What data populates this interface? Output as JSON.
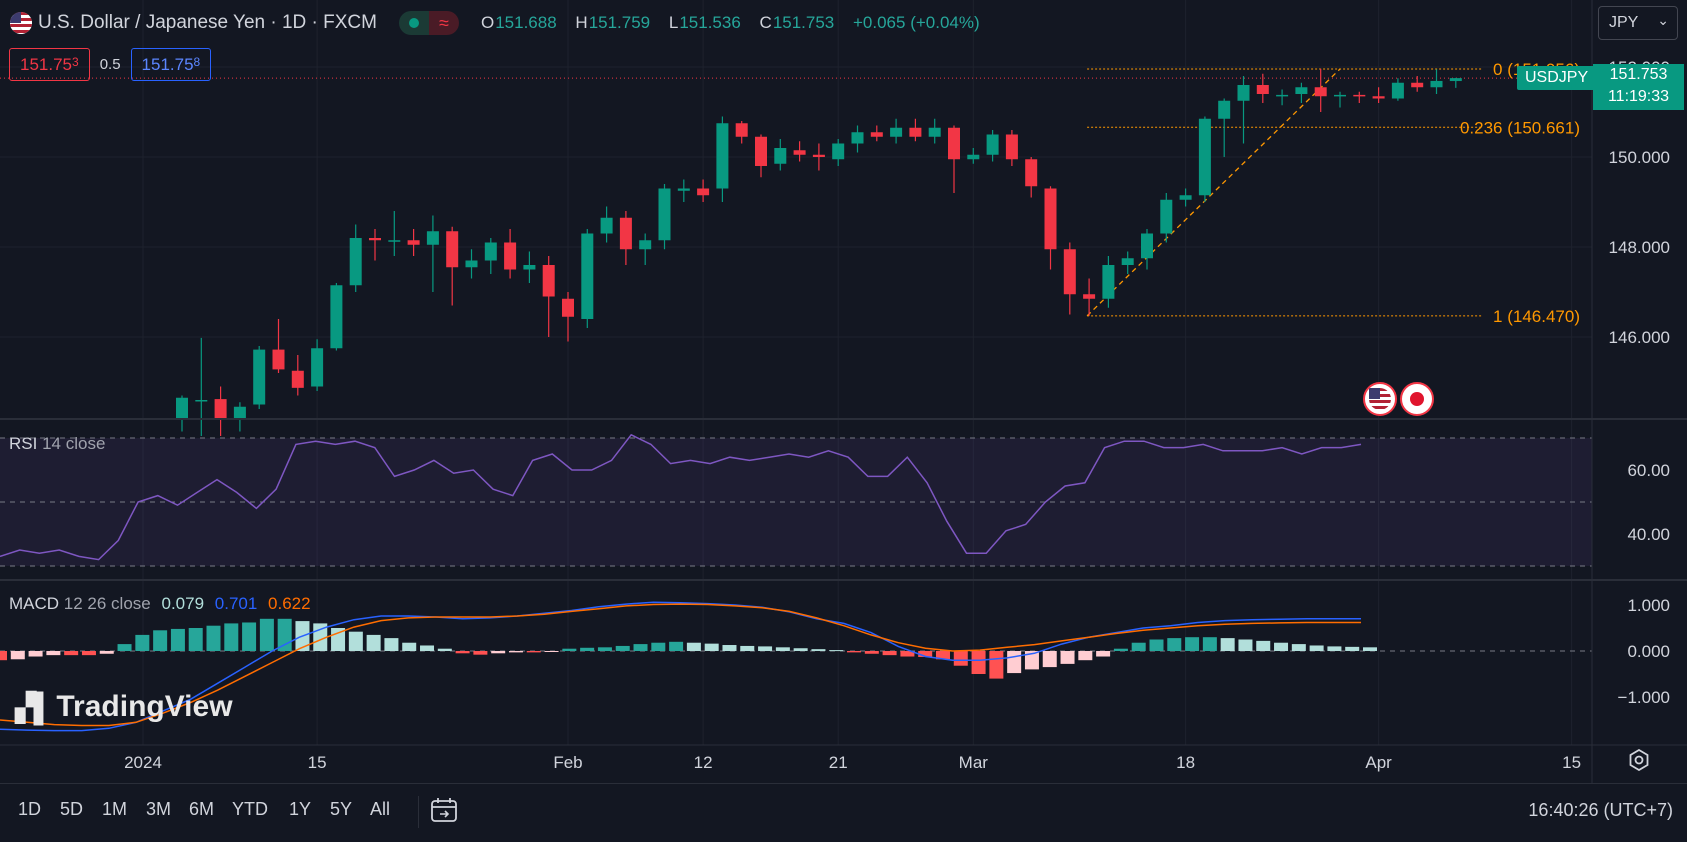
{
  "header": {
    "title": "U.S. Dollar / Japanese Yen · 1D · FXCM",
    "ohlc": {
      "o_label": "O",
      "o": "151.688",
      "h_label": "H",
      "h": "151.759",
      "l_label": "L",
      "l": "151.536",
      "c_label": "C",
      "c": "151.753",
      "change": "+0.065 (+0.04%)"
    },
    "currency": "JPY"
  },
  "trade": {
    "sell_main": "151.75",
    "sell_pip": "3",
    "spread": "0.5",
    "buy_main": "151.75",
    "buy_pip": "8"
  },
  "last_price": {
    "symbol": "USDJPY",
    "price": "151.753",
    "countdown": "11:19:33"
  },
  "rsi_label": {
    "name": "RSI",
    "params": "14 close"
  },
  "macd_label": {
    "name": "MACD",
    "params": "12 26 close",
    "hist": "0.079",
    "macd": "0.701",
    "signal": "0.622"
  },
  "logo": "TradingView",
  "timeframes": [
    "1D",
    "5D",
    "1M",
    "3M",
    "6M",
    "YTD",
    "1Y",
    "5Y",
    "All"
  ],
  "timezone": "16:40:26 (UTC+7)",
  "icons": [
    "us-flag-icon",
    "status-dot-icon",
    "wave-icon",
    "calendar-goto-icon",
    "settings-icon",
    "chevron-down-icon"
  ],
  "colors": {
    "up": "#089981",
    "down": "#f23645",
    "fib": "#ff9800",
    "rsi": "#7e57c2",
    "macd": "#2962ff",
    "signal": "#ff6d00",
    "hist_up_strong": "#26a69a",
    "hist_up_weak": "#b2dfdb",
    "hist_down_strong": "#ff5252",
    "hist_down_weak": "#ffcdd2"
  },
  "chart_data": {
    "type": "candlestick",
    "price_axis": {
      "ticks": [
        146.0,
        148.0,
        150.0,
        152.0
      ],
      "tick_labels": [
        "146.000",
        "148.000",
        "150.000",
        "152.000"
      ]
    },
    "x_labels": [
      "2024",
      "15",
      "Feb",
      "12",
      "21",
      "Mar",
      "18",
      "Apr",
      "15"
    ],
    "fib_levels": [
      {
        "ratio": "0",
        "price": 151.956,
        "label": "0 (151.956)"
      },
      {
        "ratio": "0.236",
        "price": 150.661,
        "label": "0.236 (150.661)"
      },
      {
        "ratio": "1",
        "price": 146.47,
        "label": "1 (146.470)"
      }
    ],
    "candles": [
      {
        "date": "2024-01-04",
        "o": 144.2,
        "h": 144.7,
        "l": 143.9,
        "c": 144.65
      },
      {
        "date": "2024-01-05",
        "o": 144.6,
        "h": 145.98,
        "l": 143.8,
        "c": 144.6
      },
      {
        "date": "2024-01-08",
        "o": 144.62,
        "h": 144.9,
        "l": 143.8,
        "c": 144.2
      },
      {
        "date": "2024-01-09",
        "o": 144.2,
        "h": 144.55,
        "l": 143.9,
        "c": 144.45
      },
      {
        "date": "2024-01-10",
        "o": 144.5,
        "h": 145.8,
        "l": 144.4,
        "c": 145.72
      },
      {
        "date": "2024-01-11",
        "o": 145.72,
        "h": 146.4,
        "l": 145.2,
        "c": 145.28
      },
      {
        "date": "2024-01-12",
        "o": 145.25,
        "h": 145.6,
        "l": 144.7,
        "c": 144.87
      },
      {
        "date": "2024-01-15",
        "o": 144.9,
        "h": 145.95,
        "l": 144.8,
        "c": 145.75
      },
      {
        "date": "2024-01-16",
        "o": 145.75,
        "h": 147.2,
        "l": 145.7,
        "c": 147.15
      },
      {
        "date": "2024-01-17",
        "o": 147.15,
        "h": 148.5,
        "l": 147.0,
        "c": 148.2
      },
      {
        "date": "2024-01-18",
        "o": 148.2,
        "h": 148.4,
        "l": 147.7,
        "c": 148.15
      },
      {
        "date": "2024-01-19",
        "o": 148.15,
        "h": 148.8,
        "l": 147.8,
        "c": 148.15
      },
      {
        "date": "2024-01-22",
        "o": 148.15,
        "h": 148.4,
        "l": 147.8,
        "c": 148.05
      },
      {
        "date": "2024-01-23",
        "o": 148.05,
        "h": 148.7,
        "l": 147.0,
        "c": 148.35
      },
      {
        "date": "2024-01-24",
        "o": 148.35,
        "h": 148.45,
        "l": 146.7,
        "c": 147.55
      },
      {
        "date": "2024-01-25",
        "o": 147.55,
        "h": 147.95,
        "l": 147.3,
        "c": 147.7
      },
      {
        "date": "2024-01-26",
        "o": 147.7,
        "h": 148.2,
        "l": 147.4,
        "c": 148.1
      },
      {
        "date": "2024-01-29",
        "o": 148.1,
        "h": 148.4,
        "l": 147.3,
        "c": 147.5
      },
      {
        "date": "2024-01-30",
        "o": 147.5,
        "h": 147.9,
        "l": 147.2,
        "c": 147.6
      },
      {
        "date": "2024-01-31",
        "o": 147.6,
        "h": 147.8,
        "l": 146.0,
        "c": 146.9
      },
      {
        "date": "2024-02-01",
        "o": 146.85,
        "h": 147.0,
        "l": 145.9,
        "c": 146.45
      },
      {
        "date": "2024-02-02",
        "o": 146.4,
        "h": 148.4,
        "l": 146.2,
        "c": 148.3
      },
      {
        "date": "2024-02-05",
        "o": 148.3,
        "h": 148.9,
        "l": 148.1,
        "c": 148.65
      },
      {
        "date": "2024-02-06",
        "o": 148.65,
        "h": 148.8,
        "l": 147.6,
        "c": 147.95
      },
      {
        "date": "2024-02-07",
        "o": 147.95,
        "h": 148.3,
        "l": 147.6,
        "c": 148.15
      },
      {
        "date": "2024-02-08",
        "o": 148.15,
        "h": 149.4,
        "l": 147.95,
        "c": 149.3
      },
      {
        "date": "2024-02-09",
        "o": 149.25,
        "h": 149.5,
        "l": 149.0,
        "c": 149.3
      },
      {
        "date": "2024-02-12",
        "o": 149.3,
        "h": 149.5,
        "l": 149.0,
        "c": 149.15
      },
      {
        "date": "2024-02-13",
        "o": 149.3,
        "h": 150.9,
        "l": 149.0,
        "c": 150.75
      },
      {
        "date": "2024-02-14",
        "o": 150.75,
        "h": 150.8,
        "l": 150.3,
        "c": 150.45
      },
      {
        "date": "2024-02-15",
        "o": 150.45,
        "h": 150.5,
        "l": 149.55,
        "c": 149.8
      },
      {
        "date": "2024-02-16",
        "o": 149.85,
        "h": 150.4,
        "l": 149.7,
        "c": 150.2
      },
      {
        "date": "2024-02-19",
        "o": 150.15,
        "h": 150.35,
        "l": 149.9,
        "c": 150.05
      },
      {
        "date": "2024-02-20",
        "o": 150.05,
        "h": 150.3,
        "l": 149.7,
        "c": 150.0
      },
      {
        "date": "2024-02-21",
        "o": 149.95,
        "h": 150.4,
        "l": 149.8,
        "c": 150.3
      },
      {
        "date": "2024-02-22",
        "o": 150.3,
        "h": 150.7,
        "l": 150.1,
        "c": 150.55
      },
      {
        "date": "2024-02-23",
        "o": 150.55,
        "h": 150.7,
        "l": 150.35,
        "c": 150.45
      },
      {
        "date": "2024-02-26",
        "o": 150.45,
        "h": 150.85,
        "l": 150.3,
        "c": 150.65
      },
      {
        "date": "2024-02-27",
        "o": 150.65,
        "h": 150.85,
        "l": 150.35,
        "c": 150.45
      },
      {
        "date": "2024-02-28",
        "o": 150.45,
        "h": 150.85,
        "l": 150.3,
        "c": 150.65
      },
      {
        "date": "2024-02-29",
        "o": 150.65,
        "h": 150.7,
        "l": 149.2,
        "c": 149.95
      },
      {
        "date": "2024-03-01",
        "o": 149.95,
        "h": 150.2,
        "l": 149.85,
        "c": 150.05
      },
      {
        "date": "2024-03-04",
        "o": 150.05,
        "h": 150.6,
        "l": 149.9,
        "c": 150.5
      },
      {
        "date": "2024-03-05",
        "o": 150.5,
        "h": 150.6,
        "l": 149.8,
        "c": 149.95
      },
      {
        "date": "2024-03-06",
        "o": 149.95,
        "h": 150.0,
        "l": 149.1,
        "c": 149.35
      },
      {
        "date": "2024-03-07",
        "o": 149.3,
        "h": 149.35,
        "l": 147.5,
        "c": 147.95
      },
      {
        "date": "2024-03-08",
        "o": 147.95,
        "h": 148.1,
        "l": 146.5,
        "c": 146.95
      },
      {
        "date": "2024-03-11",
        "o": 146.95,
        "h": 147.3,
        "l": 146.47,
        "c": 146.85
      },
      {
        "date": "2024-03-12",
        "o": 146.85,
        "h": 147.8,
        "l": 146.65,
        "c": 147.6
      },
      {
        "date": "2024-03-13",
        "o": 147.6,
        "h": 147.9,
        "l": 147.4,
        "c": 147.75
      },
      {
        "date": "2024-03-14",
        "o": 147.75,
        "h": 148.4,
        "l": 147.5,
        "c": 148.3
      },
      {
        "date": "2024-03-15",
        "o": 148.3,
        "h": 149.2,
        "l": 148.1,
        "c": 149.05
      },
      {
        "date": "2024-03-18",
        "o": 149.05,
        "h": 149.3,
        "l": 148.9,
        "c": 149.15
      },
      {
        "date": "2024-03-19",
        "o": 149.15,
        "h": 150.9,
        "l": 149.0,
        "c": 150.85
      },
      {
        "date": "2024-03-20",
        "o": 150.85,
        "h": 151.3,
        "l": 150.0,
        "c": 151.25
      },
      {
        "date": "2024-03-21",
        "o": 151.25,
        "h": 151.8,
        "l": 150.3,
        "c": 151.6
      },
      {
        "date": "2024-03-22",
        "o": 151.6,
        "h": 151.85,
        "l": 151.2,
        "c": 151.4
      },
      {
        "date": "2024-03-25",
        "o": 151.35,
        "h": 151.5,
        "l": 151.15,
        "c": 151.38
      },
      {
        "date": "2024-03-26",
        "o": 151.4,
        "h": 151.65,
        "l": 151.2,
        "c": 151.55
      },
      {
        "date": "2024-03-27",
        "o": 151.55,
        "h": 151.96,
        "l": 151.0,
        "c": 151.35
      },
      {
        "date": "2024-03-28",
        "o": 151.35,
        "h": 151.45,
        "l": 151.1,
        "c": 151.38
      },
      {
        "date": "2024-03-29",
        "o": 151.38,
        "h": 151.45,
        "l": 151.2,
        "c": 151.35
      },
      {
        "date": "2024-04-01",
        "o": 151.35,
        "h": 151.55,
        "l": 151.2,
        "c": 151.3
      },
      {
        "date": "2024-04-02",
        "o": 151.3,
        "h": 151.75,
        "l": 151.25,
        "c": 151.65
      },
      {
        "date": "2024-04-03",
        "o": 151.65,
        "h": 151.8,
        "l": 151.45,
        "c": 151.55
      },
      {
        "date": "2024-04-04",
        "o": 151.55,
        "h": 151.95,
        "l": 151.4,
        "c": 151.69
      },
      {
        "date": "2024-04-05",
        "o": 151.688,
        "h": 151.759,
        "l": 151.536,
        "c": 151.753
      }
    ],
    "rsi": {
      "axis_ticks": [
        40.0,
        60.0
      ],
      "tick_labels": [
        "40.00",
        "60.00"
      ],
      "bands": [
        30,
        50,
        70
      ],
      "values": [
        33,
        35,
        34,
        35,
        33,
        32,
        38,
        50,
        52,
        49,
        53,
        57,
        53,
        48,
        54,
        68,
        69,
        68,
        69,
        67,
        58,
        60,
        63,
        59,
        60,
        54,
        52,
        63,
        65,
        60,
        60,
        63,
        71,
        68,
        62,
        63,
        62,
        64,
        63,
        64,
        65,
        64,
        66,
        64,
        58,
        58,
        64,
        56,
        44,
        34,
        34,
        41,
        43,
        50,
        55,
        56,
        67,
        69,
        69,
        67,
        67,
        68,
        66,
        66,
        66,
        67,
        65,
        67,
        67,
        68
      ]
    },
    "macd": {
      "axis_ticks": [
        -1.0,
        0.0,
        1.0
      ],
      "tick_labels": [
        "−1.000",
        "0.000",
        "1.000"
      ],
      "hist": [
        -0.2,
        -0.18,
        -0.12,
        -0.09,
        -0.09,
        -0.09,
        -0.06,
        0.15,
        0.35,
        0.45,
        0.48,
        0.5,
        0.55,
        0.6,
        0.62,
        0.7,
        0.7,
        0.65,
        0.6,
        0.5,
        0.42,
        0.35,
        0.28,
        0.18,
        0.12,
        0.05,
        -0.05,
        -0.08,
        -0.05,
        -0.03,
        -0.03,
        -0.02,
        0.05,
        0.07,
        0.08,
        0.11,
        0.15,
        0.18,
        0.2,
        0.18,
        0.16,
        0.13,
        0.11,
        0.1,
        0.08,
        0.06,
        0.04,
        0.02,
        -0.03,
        -0.06,
        -0.09,
        -0.12,
        -0.13,
        -0.18,
        -0.32,
        -0.5,
        -0.6,
        -0.48,
        -0.4,
        -0.35,
        -0.28,
        -0.2,
        -0.12,
        0.05,
        0.18,
        0.25,
        0.28,
        0.3,
        0.3,
        0.28,
        0.25,
        0.22,
        0.18,
        0.15,
        0.12,
        0.1,
        0.09,
        0.08
      ],
      "macd": [
        -1.7,
        -1.72,
        -1.73,
        -1.73,
        -1.68,
        -1.55,
        -1.3,
        -1.05,
        -0.7,
        -0.35,
        0.0,
        0.3,
        0.52,
        0.68,
        0.76,
        0.76,
        0.74,
        0.7,
        0.72,
        0.76,
        0.82,
        0.88,
        0.96,
        1.02,
        1.06,
        1.05,
        1.03,
        1.0,
        0.95,
        0.85,
        0.7,
        0.6,
        0.4,
        0.1,
        -0.12,
        -0.2,
        -0.2,
        -0.15,
        -0.05,
        0.15,
        0.3,
        0.4,
        0.5,
        0.55,
        0.62,
        0.66,
        0.68,
        0.69,
        0.7,
        0.7,
        0.7
      ],
      "signal": [
        -1.5,
        -1.55,
        -1.6,
        -1.62,
        -1.62,
        -1.55,
        -1.35,
        -1.12,
        -0.85,
        -0.55,
        -0.25,
        0.05,
        0.3,
        0.52,
        0.66,
        0.72,
        0.74,
        0.74,
        0.74,
        0.76,
        0.8,
        0.86,
        0.92,
        0.98,
        1.01,
        1.02,
        1.01,
        0.98,
        0.94,
        0.86,
        0.72,
        0.55,
        0.35,
        0.18,
        0.06,
        0.0,
        0.02,
        0.08,
        0.14,
        0.22,
        0.3,
        0.38,
        0.45,
        0.5,
        0.55,
        0.58,
        0.6,
        0.61,
        0.62,
        0.62,
        0.62
      ]
    }
  }
}
